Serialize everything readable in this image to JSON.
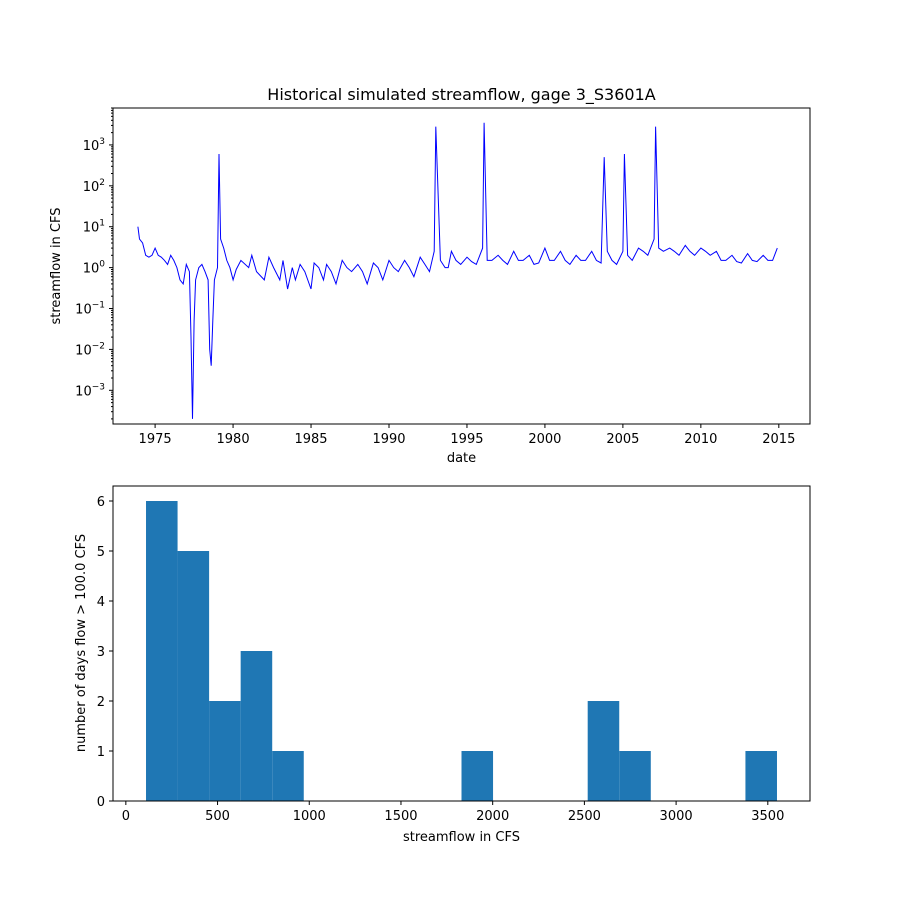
{
  "chart_data": [
    {
      "type": "line",
      "title": "Historical simulated streamflow, gage 3_S3601A",
      "xlabel": "date",
      "ylabel": "streamflow in CFS",
      "yscale": "log",
      "xlim": [
        1972.3,
        2017.0
      ],
      "ylim": [
        0.00015,
        8000
      ],
      "x_ticks": [
        1975,
        1980,
        1985,
        1990,
        1995,
        2000,
        2005,
        2010,
        2015
      ],
      "y_ticks": [
        {
          "value": 0.001,
          "base": "10",
          "exp": "−3"
        },
        {
          "value": 0.01,
          "base": "10",
          "exp": "−2"
        },
        {
          "value": 0.1,
          "base": "10",
          "exp": "−1"
        },
        {
          "value": 1,
          "base": "10",
          "exp": "0"
        },
        {
          "value": 10,
          "base": "10",
          "exp": "1"
        },
        {
          "value": 100,
          "base": "10",
          "exp": "2"
        },
        {
          "value": 1000,
          "base": "10",
          "exp": "3"
        }
      ],
      "line_color": "#0000ff",
      "grid": false,
      "series": [
        {
          "x": [
            1973.9,
            1974.0,
            1974.2,
            1974.4,
            1974.6,
            1974.8,
            1975.0,
            1975.2,
            1975.4,
            1975.6,
            1975.8,
            1976.0,
            1976.2,
            1976.4,
            1976.6,
            1976.8,
            1977.0,
            1977.2,
            1977.3,
            1977.4,
            1977.5,
            1977.6,
            1977.8,
            1978.0,
            1978.2,
            1978.4,
            1978.5,
            1978.6,
            1978.7,
            1978.8,
            1979.0,
            1979.1,
            1979.2,
            1979.4,
            1979.6,
            1979.8,
            1980.0,
            1980.2,
            1980.5,
            1981.0,
            1981.2,
            1981.5,
            1982.0,
            1982.3,
            1982.6,
            1983.0,
            1983.2,
            1983.5,
            1983.8,
            1984.0,
            1984.3,
            1984.6,
            1985.0,
            1985.2,
            1985.5,
            1985.8,
            1986.0,
            1986.3,
            1986.6,
            1987.0,
            1987.3,
            1987.6,
            1988.0,
            1988.3,
            1988.6,
            1989.0,
            1989.3,
            1989.6,
            1990.0,
            1990.3,
            1990.6,
            1991.0,
            1991.3,
            1991.6,
            1992.0,
            1992.3,
            1992.6,
            1992.9,
            1993.0,
            1993.3,
            1993.6,
            1993.8,
            1994.0,
            1994.3,
            1994.6,
            1995.0,
            1995.3,
            1995.6,
            1996.0,
            1996.1,
            1996.3,
            1996.6,
            1997.0,
            1997.3,
            1997.6,
            1998.0,
            1998.3,
            1998.6,
            1999.0,
            1999.3,
            1999.6,
            2000.0,
            2000.3,
            2000.6,
            2001.0,
            2001.3,
            2001.6,
            2002.0,
            2002.3,
            2002.6,
            2003.0,
            2003.3,
            2003.6,
            2003.8,
            2004.0,
            2004.3,
            2004.6,
            2005.0,
            2005.1,
            2005.3,
            2005.6,
            2006.0,
            2006.3,
            2006.6,
            2007.0,
            2007.1,
            2007.3,
            2007.6,
            2008.0,
            2008.3,
            2008.6,
            2009.0,
            2009.3,
            2009.6,
            2010.0,
            2010.3,
            2010.6,
            2011.0,
            2011.3,
            2011.6,
            2012.0,
            2012.3,
            2012.6,
            2013.0,
            2013.3,
            2013.6,
            2014.0,
            2014.3,
            2014.6,
            2014.9
          ],
          "y": [
            10,
            5,
            4,
            2,
            1.8,
            2,
            3,
            2,
            1.8,
            1.5,
            1.2,
            2,
            1.5,
            1,
            0.5,
            0.4,
            1.2,
            0.8,
            0.02,
            0.0002,
            0.05,
            0.5,
            1,
            1.2,
            0.8,
            0.5,
            0.01,
            0.004,
            0.05,
            0.5,
            1,
            600,
            5,
            3,
            1.5,
            1,
            0.5,
            0.9,
            1.5,
            1,
            2,
            0.8,
            0.5,
            1.8,
            1,
            0.5,
            1.5,
            0.3,
            1,
            0.5,
            1.2,
            0.8,
            0.3,
            1.3,
            1,
            0.5,
            1.2,
            0.8,
            0.4,
            1.5,
            1,
            0.8,
            1.2,
            0.8,
            0.4,
            1.3,
            1,
            0.5,
            1.5,
            1,
            0.8,
            1.5,
            1,
            0.6,
            1.8,
            1.2,
            0.8,
            2.5,
            2800,
            1.5,
            1,
            1,
            2.5,
            1.5,
            1.2,
            1.8,
            1.4,
            1.2,
            3,
            3500,
            1.5,
            1.5,
            2,
            1.5,
            1.2,
            2.5,
            1.5,
            1.5,
            2,
            1.2,
            1.3,
            3,
            1.5,
            1.5,
            2.5,
            1.5,
            1.2,
            2,
            1.5,
            1.5,
            2.5,
            1.5,
            1.3,
            500,
            2.5,
            1.5,
            1.2,
            2.5,
            600,
            2,
            1.5,
            3,
            2.5,
            2,
            5,
            2800,
            3,
            2.5,
            3,
            2.5,
            2,
            3.5,
            2.5,
            2,
            3,
            2.5,
            2,
            2.5,
            1.5,
            1.5,
            2,
            1.4,
            1.3,
            2.2,
            1.5,
            1.4,
            2,
            1.5,
            1.5,
            3
          ]
        }
      ]
    },
    {
      "type": "bar",
      "subtype": "histogram",
      "title": "",
      "xlabel": "streamflow in CFS",
      "ylabel": "number of days flow > 100.0 CFS",
      "xlim": [
        -70,
        3730
      ],
      "ylim": [
        0,
        6.3
      ],
      "x_ticks": [
        0,
        500,
        1000,
        1500,
        2000,
        2500,
        3000,
        3500
      ],
      "y_ticks": [
        0,
        1,
        2,
        3,
        4,
        5,
        6
      ],
      "bar_color": "#1f77b4",
      "grid": false,
      "bin_edges": [
        110,
        282,
        454,
        626,
        798,
        970,
        1142,
        1314,
        1486,
        1658,
        1830,
        2002,
        2174,
        2346,
        2518,
        2690,
        2862,
        3034,
        3206,
        3378,
        3550
      ],
      "counts": [
        6,
        5,
        2,
        3,
        1,
        0,
        0,
        0,
        0,
        0,
        1,
        0,
        0,
        0,
        2,
        1,
        0,
        0,
        0,
        1
      ]
    }
  ]
}
